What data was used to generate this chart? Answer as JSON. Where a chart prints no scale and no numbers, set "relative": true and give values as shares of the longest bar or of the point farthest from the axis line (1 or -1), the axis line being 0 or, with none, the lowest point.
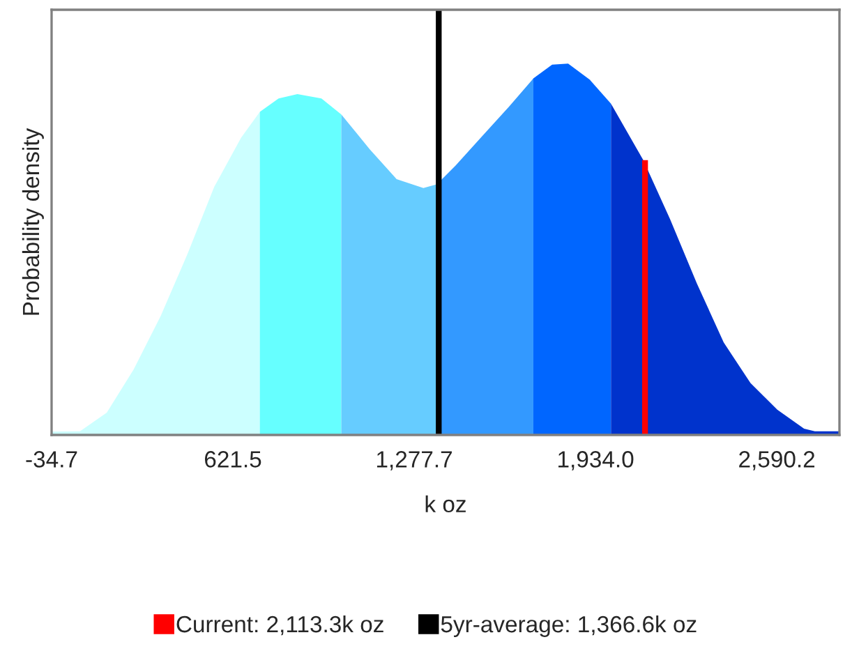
{
  "chart_data": {
    "type": "area",
    "relative": true,
    "ylabel": "Probability density",
    "xlabel": "k oz",
    "xlim": [
      -34.7,
      2817
    ],
    "xticks": [
      -34.7,
      621.5,
      {
        "value": 1277.7,
        "label": "1,277.7"
      },
      {
        "value": 1934.0,
        "label": "1,934.0"
      },
      {
        "value": 2590.2,
        "label": "2,590.2"
      }
    ],
    "series": [
      {
        "color": "#ccffff",
        "x": [
          -34.7,
          68,
          165,
          262,
          360,
          457,
          554,
          651,
          719
        ],
        "values": [
          0.009,
          0.01,
          0.06,
          0.176,
          0.32,
          0.487,
          0.668,
          0.8,
          0.87
        ]
      },
      {
        "color": "#66ffff",
        "x": [
          719,
          787,
          855,
          942,
          1014
        ],
        "values": [
          0.87,
          0.906,
          0.918,
          0.906,
          0.863
        ]
      },
      {
        "color": "#66ccff",
        "x": [
          1014,
          1117,
          1214,
          1311,
          1359,
          1366.6
        ],
        "values": [
          0.863,
          0.769,
          0.689,
          0.665,
          0.675,
          0.68
        ]
      },
      {
        "color": "#3399ff",
        "x": [
          1366.6,
          1427,
          1524,
          1621,
          1709
        ],
        "values": [
          0.68,
          0.725,
          0.805,
          0.884,
          0.96
        ]
      },
      {
        "color": "#0066ff",
        "x": [
          1709,
          1777,
          1835,
          1913,
          1990
        ],
        "values": [
          0.96,
          0.997,
          1.0,
          0.957,
          0.892
        ]
      },
      {
        "color": "#0033cc",
        "x": [
          1990,
          2107,
          2204,
          2301,
          2398,
          2495,
          2592,
          2689,
          2728,
          2817
        ],
        "values": [
          0.892,
          0.74,
          0.581,
          0.408,
          0.249,
          0.14,
          0.068,
          0.017,
          0.01,
          0.01
        ]
      },
      {
        "type": "line",
        "name": "Current: 2,113.3k oz",
        "color": "#ff0000",
        "x": [
          2113.3,
          2113.3
        ],
        "values": [
          0,
          0.74
        ]
      }
    ],
    "ref_lines": [
      {
        "axis": "x",
        "value": 1366.6,
        "label": "5yr-average: 1,366.6k oz",
        "color": "#000000"
      }
    ],
    "legend": "bottom",
    "grid": false
  }
}
